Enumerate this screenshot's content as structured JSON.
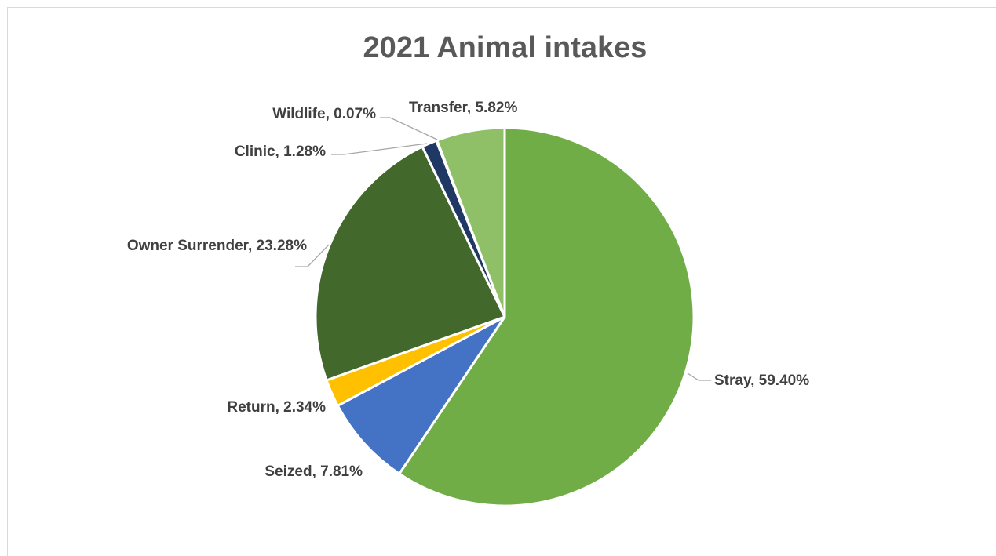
{
  "chart_data": {
    "type": "pie",
    "title": "2021 Animal intakes",
    "slices": [
      {
        "name": "Stray",
        "value": 59.4,
        "label": "Stray, 59.40%",
        "color": "#70ad47"
      },
      {
        "name": "Seized",
        "value": 7.81,
        "label": "Seized, 7.81%",
        "color": "#4472c4"
      },
      {
        "name": "Return",
        "value": 2.34,
        "label": "Return, 2.34%",
        "color": "#ffc000"
      },
      {
        "name": "Owner Surrender",
        "value": 23.28,
        "label": "Owner Surrender, 23.28%",
        "color": "#43682b"
      },
      {
        "name": "Clinic",
        "value": 1.28,
        "label": "Clinic, 1.28%",
        "color": "#203864"
      },
      {
        "name": "Wildlife",
        "value": 0.07,
        "label": "Wildlife, 0.07%",
        "color": "#2f5597"
      },
      {
        "name": "Transfer",
        "value": 5.82,
        "label": "Transfer, 5.82%",
        "color": "#8fc068"
      }
    ],
    "legend": "none",
    "data_labels": "outside with leader lines"
  }
}
